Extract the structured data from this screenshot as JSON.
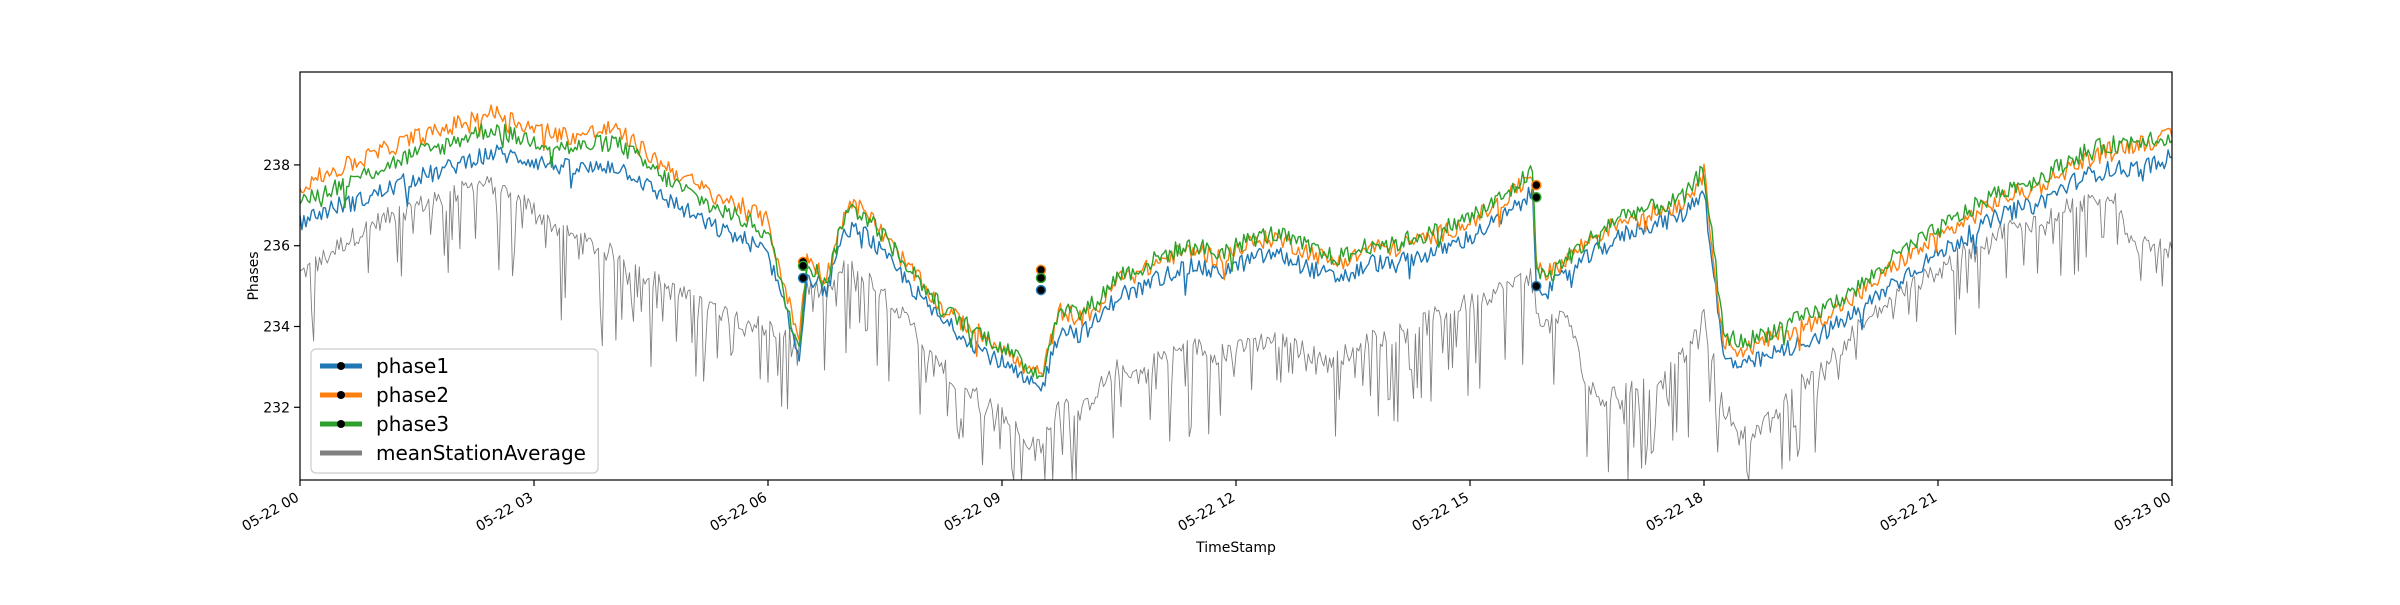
{
  "chart_data": {
    "type": "line",
    "title": "",
    "xlabel": "TimeStamp",
    "ylabel": "Phases",
    "x_range": [
      "05-22 00:00",
      "05-23 00:00"
    ],
    "ylim": [
      230.2,
      240.3
    ],
    "grid": false,
    "legend_position": "lower-left",
    "x_tick_labels": [
      "05-22 00",
      "05-22 03",
      "05-22 06",
      "05-22 09",
      "05-22 12",
      "05-22 15",
      "05-22 18",
      "05-22 21",
      "05-23 00"
    ],
    "x_tick_hours": [
      0,
      3,
      6,
      9,
      12,
      15,
      18,
      21,
      24
    ],
    "y_ticks": [
      232,
      234,
      236,
      238
    ],
    "y_tick_labels": [
      "232",
      "234",
      "236",
      "238"
    ],
    "series": [
      {
        "name": "phase1",
        "color": "#1f77b4",
        "marker": "black-dot",
        "x_hours": [
          0,
          0.25,
          0.5,
          0.75,
          1,
          1.25,
          1.5,
          1.75,
          2,
          2.25,
          2.5,
          2.75,
          3,
          3.25,
          3.5,
          3.75,
          4,
          4.25,
          4.5,
          4.75,
          5,
          5.25,
          5.5,
          5.75,
          6,
          6.25,
          6.4,
          6.5,
          6.75,
          7,
          7.25,
          7.5,
          7.75,
          8,
          8.25,
          8.5,
          8.75,
          9,
          9.25,
          9.5,
          9.75,
          10,
          10.25,
          10.5,
          10.75,
          11,
          11.25,
          11.5,
          11.75,
          12,
          12.25,
          12.5,
          12.75,
          13,
          13.25,
          13.5,
          13.75,
          14,
          14.25,
          14.5,
          14.75,
          15,
          15.25,
          15.5,
          15.8,
          15.85,
          16,
          16.25,
          16.5,
          16.75,
          17,
          17.25,
          17.5,
          17.75,
          18,
          18.25,
          18.5,
          18.75,
          19,
          19.25,
          19.5,
          19.75,
          20,
          20.25,
          20.5,
          20.75,
          21,
          21.25,
          21.5,
          21.75,
          22,
          22.25,
          22.5,
          22.75,
          23,
          23.25,
          23.5,
          23.75,
          24
        ],
        "values": [
          236.6,
          236.8,
          237.0,
          237.1,
          237.3,
          237.5,
          237.7,
          237.8,
          238.0,
          238.2,
          238.3,
          238.2,
          238.1,
          238.0,
          237.9,
          237.9,
          238.0,
          237.8,
          237.4,
          237.1,
          236.8,
          236.5,
          236.3,
          236.1,
          235.8,
          234.2,
          233.2,
          235.3,
          234.9,
          236.4,
          236.3,
          235.7,
          235.2,
          234.6,
          234.1,
          233.8,
          233.4,
          233.1,
          232.7,
          232.4,
          234.0,
          233.8,
          234.2,
          234.8,
          234.9,
          235.2,
          235.4,
          235.5,
          235.3,
          235.5,
          235.7,
          235.8,
          235.6,
          235.4,
          235.2,
          235.3,
          235.6,
          235.5,
          235.7,
          235.8,
          236.0,
          236.2,
          236.5,
          236.8,
          237.3,
          235.1,
          234.9,
          235.3,
          235.7,
          236.0,
          236.3,
          236.5,
          236.6,
          236.8,
          237.4,
          233.2,
          233.0,
          233.2,
          233.4,
          233.6,
          233.8,
          234.1,
          234.4,
          234.8,
          235.2,
          235.5,
          235.8,
          236.1,
          236.4,
          236.7,
          236.9,
          237.0,
          237.3,
          237.6,
          237.8,
          237.9,
          237.9,
          238.0,
          238.2
        ],
        "markers": [
          {
            "x_hours": 6.45,
            "value": 235.2
          },
          {
            "x_hours": 9.5,
            "value": 234.9
          },
          {
            "x_hours": 15.85,
            "value": 235.0
          }
        ]
      },
      {
        "name": "phase2",
        "color": "#ff7f0e",
        "marker": "black-dot",
        "x_hours": [
          0,
          0.25,
          0.5,
          0.75,
          1,
          1.25,
          1.5,
          1.75,
          2,
          2.25,
          2.5,
          2.75,
          3,
          3.25,
          3.5,
          3.75,
          4,
          4.25,
          4.5,
          4.75,
          5,
          5.25,
          5.5,
          5.75,
          6,
          6.25,
          6.4,
          6.5,
          6.75,
          7,
          7.25,
          7.5,
          7.75,
          8,
          8.25,
          8.5,
          8.75,
          9,
          9.25,
          9.5,
          9.75,
          10,
          10.25,
          10.5,
          10.75,
          11,
          11.25,
          11.5,
          11.75,
          12,
          12.25,
          12.5,
          12.75,
          13,
          13.25,
          13.5,
          13.75,
          14,
          14.25,
          14.5,
          14.75,
          15,
          15.25,
          15.5,
          15.8,
          15.85,
          16,
          16.25,
          16.5,
          16.75,
          17,
          17.25,
          17.5,
          17.75,
          18,
          18.25,
          18.5,
          18.75,
          19,
          19.25,
          19.5,
          19.75,
          20,
          20.25,
          20.5,
          20.75,
          21,
          21.25,
          21.5,
          21.75,
          22,
          22.25,
          22.5,
          22.75,
          23,
          23.25,
          23.5,
          23.75,
          24
        ],
        "values": [
          237.5,
          237.7,
          237.9,
          238.1,
          238.3,
          238.5,
          238.7,
          238.8,
          239.0,
          239.2,
          239.3,
          239.1,
          238.9,
          238.8,
          238.7,
          238.8,
          238.9,
          238.6,
          238.2,
          237.9,
          237.6,
          237.3,
          237.1,
          236.9,
          236.6,
          234.7,
          233.7,
          235.7,
          235.2,
          237.0,
          236.9,
          236.2,
          235.6,
          235.0,
          234.4,
          234.1,
          233.8,
          233.5,
          233.0,
          232.8,
          234.4,
          234.2,
          234.5,
          235.2,
          235.3,
          235.6,
          235.8,
          235.9,
          235.7,
          235.9,
          236.1,
          236.2,
          236.0,
          235.8,
          235.6,
          235.7,
          236.0,
          235.9,
          236.1,
          236.2,
          236.4,
          236.6,
          236.9,
          237.2,
          237.8,
          235.6,
          235.3,
          235.7,
          236.1,
          236.4,
          236.7,
          236.8,
          236.9,
          237.1,
          237.8,
          233.6,
          233.4,
          233.6,
          233.8,
          234.0,
          234.2,
          234.5,
          234.8,
          235.2,
          235.6,
          235.9,
          236.2,
          236.5,
          236.8,
          237.1,
          237.3,
          237.4,
          237.7,
          238.0,
          238.2,
          238.4,
          238.5,
          238.6,
          238.7
        ],
        "markers": [
          {
            "x_hours": 6.45,
            "value": 235.6
          },
          {
            "x_hours": 9.5,
            "value": 235.4
          },
          {
            "x_hours": 15.85,
            "value": 237.5
          }
        ]
      },
      {
        "name": "phase3",
        "color": "#2ca02c",
        "marker": "black-dot",
        "x_hours": [
          0,
          0.25,
          0.5,
          0.75,
          1,
          1.25,
          1.5,
          1.75,
          2,
          2.25,
          2.5,
          2.75,
          3,
          3.25,
          3.5,
          3.75,
          4,
          4.25,
          4.5,
          4.75,
          5,
          5.25,
          5.5,
          5.75,
          6,
          6.25,
          6.4,
          6.5,
          6.75,
          7,
          7.25,
          7.5,
          7.75,
          8,
          8.25,
          8.5,
          8.75,
          9,
          9.25,
          9.5,
          9.75,
          10,
          10.25,
          10.5,
          10.75,
          11,
          11.25,
          11.5,
          11.75,
          12,
          12.25,
          12.5,
          12.75,
          13,
          13.25,
          13.5,
          13.75,
          14,
          14.25,
          14.5,
          14.75,
          15,
          15.25,
          15.5,
          15.8,
          15.85,
          16,
          16.25,
          16.5,
          16.75,
          17,
          17.25,
          17.5,
          17.75,
          18,
          18.25,
          18.5,
          18.75,
          19,
          19.25,
          19.5,
          19.75,
          20,
          20.25,
          20.5,
          20.75,
          21,
          21.25,
          21.5,
          21.75,
          22,
          22.25,
          22.5,
          22.75,
          23,
          23.25,
          23.5,
          23.75,
          24
        ],
        "values": [
          237.1,
          237.3,
          237.5,
          237.7,
          237.9,
          238.1,
          238.3,
          238.4,
          238.6,
          238.8,
          238.9,
          238.7,
          238.6,
          238.5,
          238.4,
          238.5,
          238.6,
          238.3,
          237.9,
          237.6,
          237.3,
          237.0,
          236.8,
          236.6,
          236.3,
          234.5,
          233.5,
          235.6,
          235.1,
          236.9,
          236.8,
          236.2,
          235.6,
          235.0,
          234.4,
          234.1,
          233.8,
          233.5,
          233.1,
          232.8,
          234.5,
          234.3,
          234.7,
          235.3,
          235.4,
          235.7,
          235.9,
          236.0,
          235.8,
          236.0,
          236.2,
          236.3,
          236.1,
          235.9,
          235.7,
          235.8,
          236.1,
          236.0,
          236.2,
          236.3,
          236.5,
          236.7,
          237.0,
          237.3,
          237.9,
          235.5,
          235.2,
          235.7,
          236.1,
          236.5,
          236.8,
          236.9,
          237.0,
          237.2,
          237.9,
          233.8,
          233.6,
          233.8,
          234.0,
          234.2,
          234.4,
          234.7,
          235.0,
          235.4,
          235.8,
          236.1,
          236.4,
          236.7,
          237.0,
          237.3,
          237.5,
          237.6,
          237.9,
          238.2,
          238.4,
          238.5,
          238.6,
          238.7,
          238.6
        ],
        "markers": [
          {
            "x_hours": 6.45,
            "value": 235.5
          },
          {
            "x_hours": 9.5,
            "value": 235.2
          },
          {
            "x_hours": 15.85,
            "value": 237.2
          }
        ]
      },
      {
        "name": "meanStationAverage",
        "color": "#808080",
        "marker": "none",
        "x_hours": [
          0,
          0.25,
          0.5,
          0.75,
          1,
          1.25,
          1.5,
          1.75,
          2,
          2.25,
          2.5,
          2.75,
          3,
          3.25,
          3.5,
          3.75,
          4,
          4.25,
          4.5,
          4.75,
          5,
          5.25,
          5.5,
          5.75,
          6,
          6.25,
          6.4,
          6.5,
          6.75,
          7,
          7.25,
          7.5,
          7.75,
          8,
          8.25,
          8.5,
          8.75,
          9,
          9.25,
          9.5,
          9.75,
          10,
          10.25,
          10.5,
          10.75,
          11,
          11.25,
          11.5,
          11.75,
          12,
          12.25,
          12.5,
          12.75,
          13,
          13.25,
          13.5,
          13.75,
          14,
          14.25,
          14.5,
          14.75,
          15,
          15.25,
          15.5,
          15.8,
          15.85,
          16,
          16.25,
          16.5,
          16.75,
          17,
          17.25,
          17.5,
          17.75,
          18,
          18.25,
          18.5,
          18.75,
          19,
          19.25,
          19.5,
          19.75,
          20,
          20.25,
          20.5,
          20.75,
          21,
          21.25,
          21.5,
          21.75,
          22,
          22.25,
          22.5,
          22.75,
          23,
          23.25,
          23.5,
          23.75,
          24
        ],
        "values": [
          235.3,
          235.6,
          236.0,
          236.3,
          236.6,
          236.8,
          237.0,
          237.1,
          237.3,
          237.5,
          237.5,
          237.2,
          236.9,
          236.5,
          236.2,
          236.0,
          235.8,
          235.5,
          235.2,
          234.9,
          234.7,
          234.5,
          234.3,
          234.1,
          234.0,
          233.8,
          233.5,
          235.0,
          234.8,
          235.5,
          235.2,
          234.7,
          234.2,
          233.6,
          233.0,
          232.5,
          232.2,
          231.8,
          231.3,
          231.0,
          232.2,
          231.8,
          232.5,
          233.0,
          232.8,
          233.2,
          233.4,
          233.5,
          233.3,
          233.4,
          233.6,
          233.7,
          233.5,
          233.3,
          233.2,
          233.4,
          233.7,
          233.8,
          234.0,
          234.2,
          234.4,
          234.6,
          234.8,
          235.0,
          235.3,
          234.4,
          234.0,
          234.3,
          232.5,
          232.2,
          232.4,
          232.6,
          232.7,
          233.3,
          234.2,
          232.0,
          231.3,
          231.5,
          232.0,
          232.6,
          233.0,
          233.5,
          234.0,
          234.4,
          234.8,
          235.1,
          235.4,
          235.7,
          236.0,
          236.3,
          236.5,
          236.6,
          236.8,
          237.0,
          237.2,
          237.2,
          236.0,
          236.0,
          235.9
        ],
        "markers": []
      }
    ]
  },
  "legend": {
    "items": [
      {
        "label": "phase1",
        "color": "#1f77b4"
      },
      {
        "label": "phase2",
        "color": "#ff7f0e"
      },
      {
        "label": "phase3",
        "color": "#2ca02c"
      },
      {
        "label": "meanStationAverage",
        "color": "#808080"
      }
    ]
  }
}
